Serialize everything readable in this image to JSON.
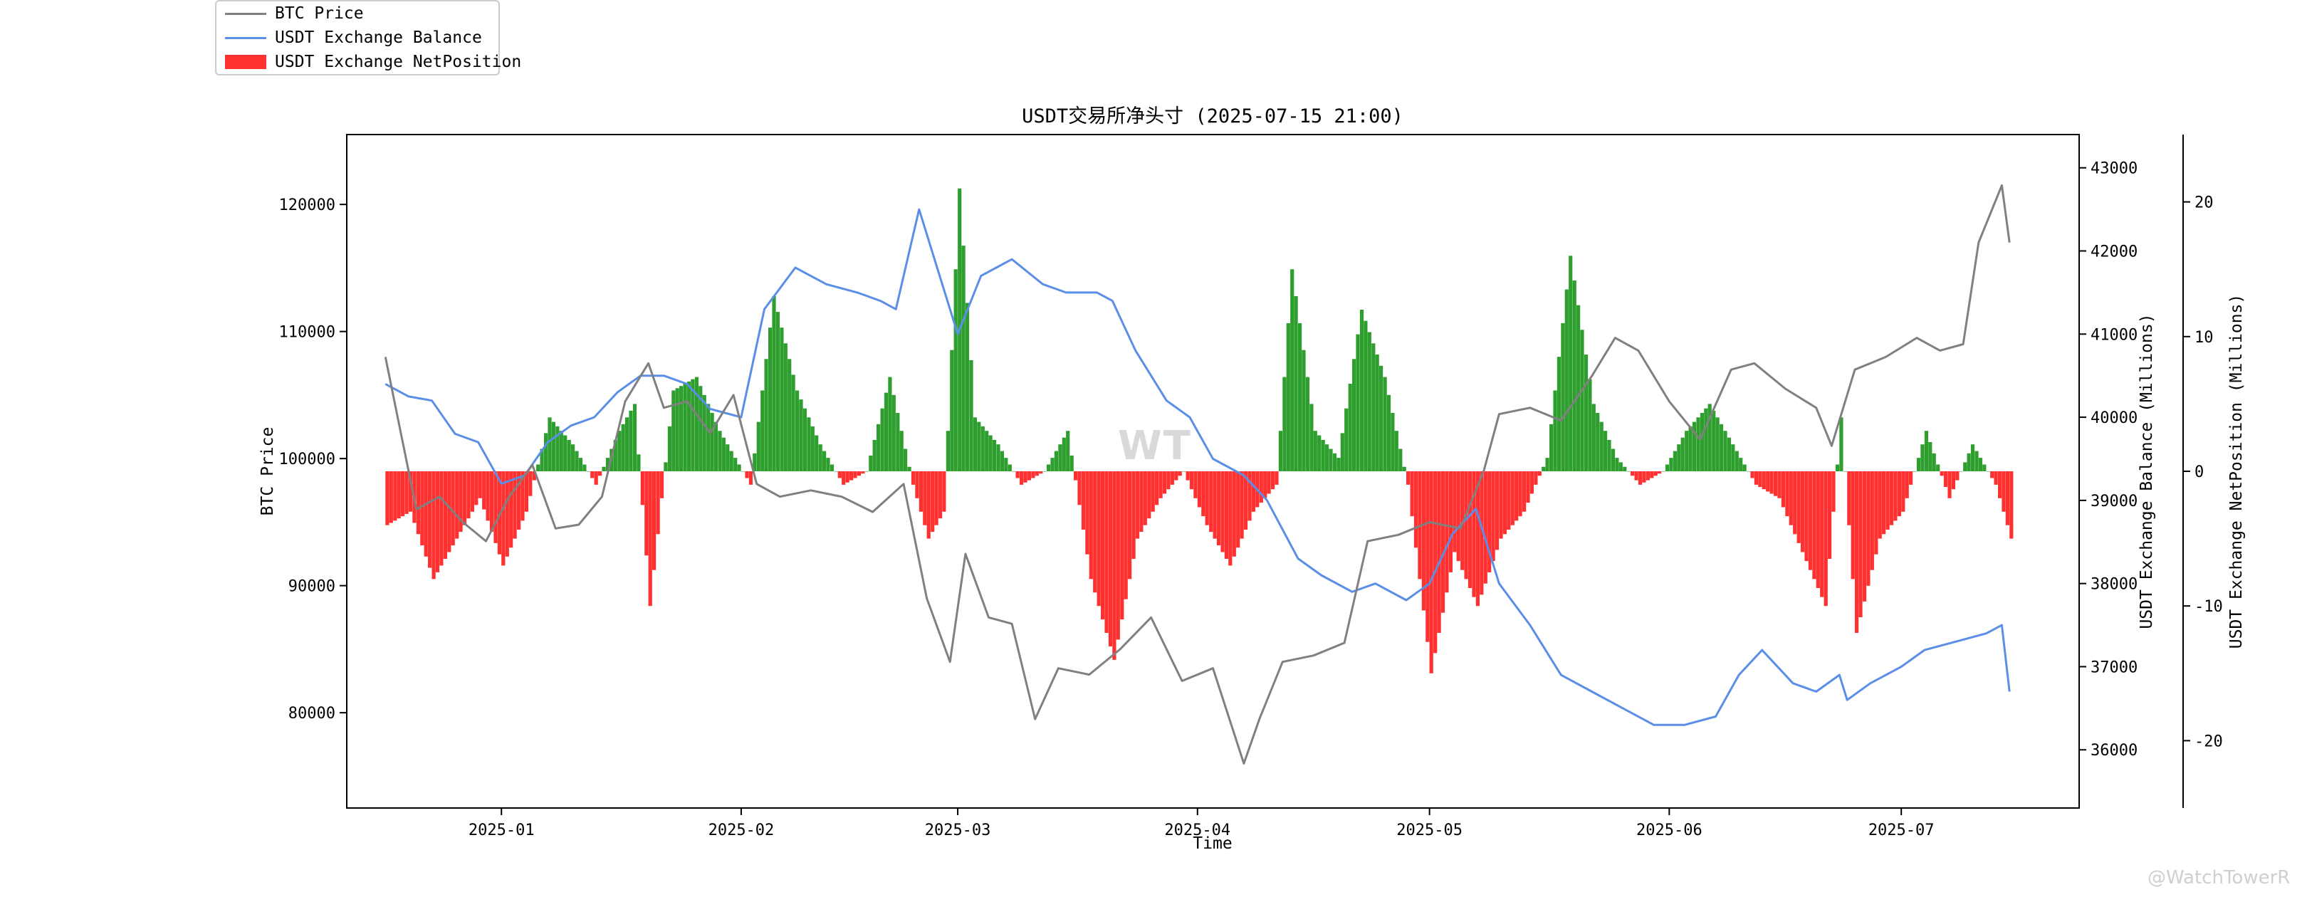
{
  "chart_data": {
    "type": "line",
    "title": "USDT交易所净头寸 (2025-07-15 21:00)",
    "xlabel": "Time",
    "ylabel_left": "BTC Price",
    "ylabel_right": "USDT Exchange Balance (Millions)",
    "ylabel_right2": "USDT Exchange NetPosition (Millions)",
    "x_range": [
      "2024-12-12",
      "2025-07-24"
    ],
    "x_ticks": [
      "2025-01",
      "2025-02",
      "2025-03",
      "2025-04",
      "2025-05",
      "2025-06",
      "2025-07"
    ],
    "x_tick_dates": [
      "2025-01-01",
      "2025-02-01",
      "2025-03-01",
      "2025-04-01",
      "2025-05-01",
      "2025-06-01",
      "2025-07-01"
    ],
    "left_axis": {
      "ylim": [
        72500,
        125500
      ],
      "ticks": [
        80000,
        90000,
        100000,
        110000,
        120000
      ]
    },
    "right_axis": {
      "ylim": [
        35300,
        43400
      ],
      "ticks": [
        36000,
        37000,
        38000,
        39000,
        40000,
        41000,
        42000,
        43000
      ]
    },
    "right2_axis": {
      "ylim": [
        -25,
        25
      ],
      "ticks": [
        -20,
        -10,
        0,
        10,
        20
      ]
    },
    "grid": false,
    "legend_position": "top-left",
    "series": [
      {
        "name": "BTC Price",
        "axis": "left",
        "color": "#808080",
        "x": [
          "2024-12-17",
          "2024-12-19",
          "2024-12-21",
          "2024-12-24",
          "2024-12-27",
          "2024-12-30",
          "2025-01-02",
          "2025-01-05",
          "2025-01-08",
          "2025-01-11",
          "2025-01-14",
          "2025-01-17",
          "2025-01-20",
          "2025-01-22",
          "2025-01-25",
          "2025-01-28",
          "2025-01-31",
          "2025-02-03",
          "2025-02-06",
          "2025-02-10",
          "2025-02-14",
          "2025-02-18",
          "2025-02-22",
          "2025-02-25",
          "2025-02-28",
          "2025-03-02",
          "2025-03-05",
          "2025-03-08",
          "2025-03-11",
          "2025-03-14",
          "2025-03-18",
          "2025-03-22",
          "2025-03-26",
          "2025-03-30",
          "2025-04-03",
          "2025-04-07",
          "2025-04-09",
          "2025-04-12",
          "2025-04-16",
          "2025-04-20",
          "2025-04-23",
          "2025-04-27",
          "2025-05-01",
          "2025-05-05",
          "2025-05-08",
          "2025-05-10",
          "2025-05-14",
          "2025-05-18",
          "2025-05-22",
          "2025-05-25",
          "2025-05-28",
          "2025-06-01",
          "2025-06-05",
          "2025-06-09",
          "2025-06-12",
          "2025-06-16",
          "2025-06-20",
          "2025-06-22",
          "2025-06-25",
          "2025-06-29",
          "2025-07-03",
          "2025-07-06",
          "2025-07-09",
          "2025-07-11",
          "2025-07-14",
          "2025-07-15"
        ],
        "values": [
          108000,
          102000,
          96000,
          97000,
          95000,
          93500,
          97000,
          99500,
          94500,
          94800,
          97000,
          104500,
          107500,
          104000,
          104500,
          102000,
          105000,
          98000,
          97000,
          97500,
          97000,
          95800,
          98000,
          89000,
          84000,
          92500,
          87500,
          87000,
          79500,
          83500,
          83000,
          85000,
          87500,
          82500,
          83500,
          76000,
          79500,
          84000,
          84500,
          85500,
          93500,
          94000,
          95000,
          94500,
          99000,
          103500,
          104000,
          103000,
          106500,
          109500,
          108500,
          104500,
          101500,
          107000,
          107500,
          105500,
          104000,
          101000,
          107000,
          108000,
          109500,
          108500,
          109000,
          117000,
          121500,
          117000
        ]
      },
      {
        "name": "USDT Exchange Balance",
        "axis": "right",
        "color": "#5b8ee6",
        "x": [
          "2024-12-17",
          "2024-12-20",
          "2024-12-23",
          "2024-12-26",
          "2024-12-29",
          "2025-01-01",
          "2025-01-04",
          "2025-01-07",
          "2025-01-10",
          "2025-01-13",
          "2025-01-16",
          "2025-01-19",
          "2025-01-22",
          "2025-01-25",
          "2025-01-28",
          "2025-02-01",
          "2025-02-04",
          "2025-02-08",
          "2025-02-12",
          "2025-02-16",
          "2025-02-19",
          "2025-02-21",
          "2025-02-24",
          "2025-02-27",
          "2025-03-01",
          "2025-03-04",
          "2025-03-08",
          "2025-03-12",
          "2025-03-15",
          "2025-03-19",
          "2025-03-21",
          "2025-03-24",
          "2025-03-28",
          "2025-03-31",
          "2025-04-03",
          "2025-04-07",
          "2025-04-10",
          "2025-04-14",
          "2025-04-17",
          "2025-04-21",
          "2025-04-24",
          "2025-04-28",
          "2025-05-01",
          "2025-05-04",
          "2025-05-07",
          "2025-05-10",
          "2025-05-14",
          "2025-05-18",
          "2025-05-22",
          "2025-05-26",
          "2025-05-30",
          "2025-06-03",
          "2025-06-07",
          "2025-06-10",
          "2025-06-13",
          "2025-06-17",
          "2025-06-20",
          "2025-06-23",
          "2025-06-24",
          "2025-06-27",
          "2025-07-01",
          "2025-07-04",
          "2025-07-08",
          "2025-07-12",
          "2025-07-14",
          "2025-07-15"
        ],
        "values": [
          40400,
          40250,
          40200,
          39800,
          39700,
          39200,
          39300,
          39700,
          39900,
          40000,
          40300,
          40500,
          40500,
          40400,
          40100,
          40000,
          41300,
          41800,
          41600,
          41500,
          41400,
          41300,
          42500,
          41600,
          41000,
          41700,
          41900,
          41600,
          41500,
          41500,
          41400,
          40800,
          40200,
          40000,
          39500,
          39300,
          39000,
          38300,
          38100,
          37900,
          38000,
          37800,
          38000,
          38600,
          38900,
          38000,
          37500,
          36900,
          36700,
          36500,
          36300,
          36300,
          36400,
          36900,
          37200,
          36800,
          36700,
          36900,
          36600,
          36800,
          37000,
          37200,
          37300,
          37400,
          37500,
          36700
        ]
      },
      {
        "name": "USDT Exchange NetPosition",
        "axis": "right2",
        "color_positive": "#2e9e2e",
        "color_negative": "#ff3030",
        "x": [
          "2024-12-17",
          "2024-12-20",
          "2024-12-23",
          "2024-12-26",
          "2024-12-29",
          "2025-01-01",
          "2025-01-04",
          "2025-01-07",
          "2025-01-10",
          "2025-01-13",
          "2025-01-16",
          "2025-01-18",
          "2025-01-20",
          "2025-01-23",
          "2025-01-26",
          "2025-01-29",
          "2025-02-02",
          "2025-02-05",
          "2025-02-08",
          "2025-02-11",
          "2025-02-14",
          "2025-02-17",
          "2025-02-20",
          "2025-02-23",
          "2025-02-25",
          "2025-02-27",
          "2025-03-01",
          "2025-03-03",
          "2025-03-06",
          "2025-03-09",
          "2025-03-12",
          "2025-03-15",
          "2025-03-18",
          "2025-03-21",
          "2025-03-24",
          "2025-03-27",
          "2025-03-30",
          "2025-04-02",
          "2025-04-05",
          "2025-04-08",
          "2025-04-11",
          "2025-04-13",
          "2025-04-16",
          "2025-04-19",
          "2025-04-22",
          "2025-04-25",
          "2025-04-28",
          "2025-05-01",
          "2025-05-04",
          "2025-05-07",
          "2025-05-10",
          "2025-05-13",
          "2025-05-16",
          "2025-05-19",
          "2025-05-22",
          "2025-05-25",
          "2025-05-28",
          "2025-05-31",
          "2025-06-03",
          "2025-06-06",
          "2025-06-09",
          "2025-06-12",
          "2025-06-15",
          "2025-06-18",
          "2025-06-21",
          "2025-06-23",
          "2025-06-25",
          "2025-06-28",
          "2025-07-01",
          "2025-07-04",
          "2025-07-07",
          "2025-07-10",
          "2025-07-13",
          "2025-07-15"
        ],
        "values": [
          -4,
          -3,
          -8,
          -5,
          -2,
          -7,
          -3,
          4,
          2,
          -1,
          3,
          5,
          -10,
          6,
          7,
          3,
          -1,
          13,
          6,
          2,
          -1,
          0,
          7,
          -1,
          -5,
          -3,
          21,
          4,
          2,
          -1,
          0,
          3,
          -8,
          -14,
          -5,
          -2,
          0,
          -4,
          -7,
          -3,
          -1,
          15,
          3,
          1,
          12,
          7,
          -1,
          -15,
          -6,
          -10,
          -5,
          -3,
          1,
          16,
          5,
          1,
          -1,
          0,
          3,
          5,
          2,
          -1,
          -2,
          -6,
          -10,
          4,
          -12,
          -5,
          -3,
          3,
          -2,
          2,
          -1,
          -5
        ]
      }
    ],
    "watermark": "@WatchTowerR"
  }
}
